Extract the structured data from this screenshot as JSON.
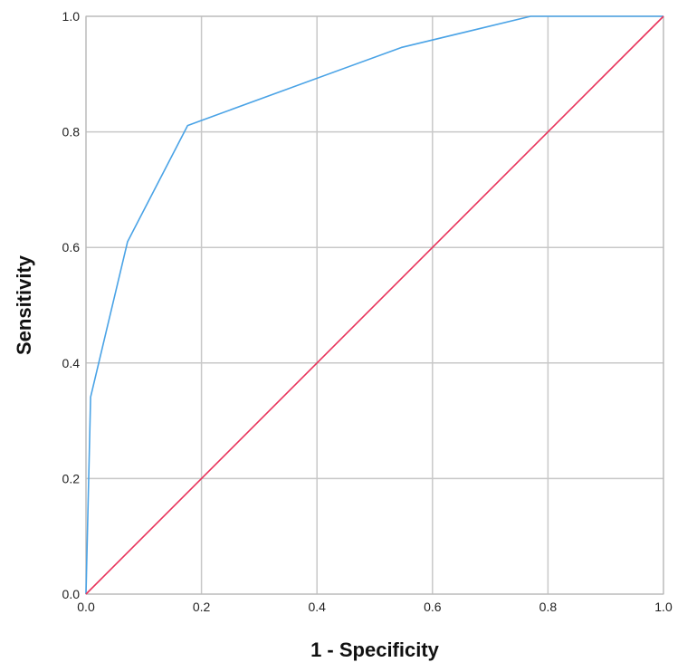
{
  "chart_data": {
    "type": "line",
    "title": "",
    "xlabel": "1 - Specificity",
    "ylabel": "Sensitivity",
    "xlim": [
      0.0,
      1.0
    ],
    "ylim": [
      0.0,
      1.0
    ],
    "xticks": [
      "0.0",
      "0.2",
      "0.4",
      "0.6",
      "0.8",
      "1.0"
    ],
    "yticks": [
      "0.0",
      "0.2",
      "0.4",
      "0.6",
      "0.8",
      "1.0"
    ],
    "grid": true,
    "legend": "none",
    "series": [
      {
        "color": "#4aa3e6",
        "x": [
          0.0,
          0.008,
          0.072,
          0.176,
          0.546,
          0.77,
          1.0
        ],
        "y": [
          0.0,
          0.341,
          0.61,
          0.811,
          0.946,
          1.0,
          1.0
        ]
      },
      {
        "color": "#e8325a",
        "x": [
          0.0,
          1.0
        ],
        "y": [
          0.0,
          1.0
        ]
      }
    ]
  }
}
